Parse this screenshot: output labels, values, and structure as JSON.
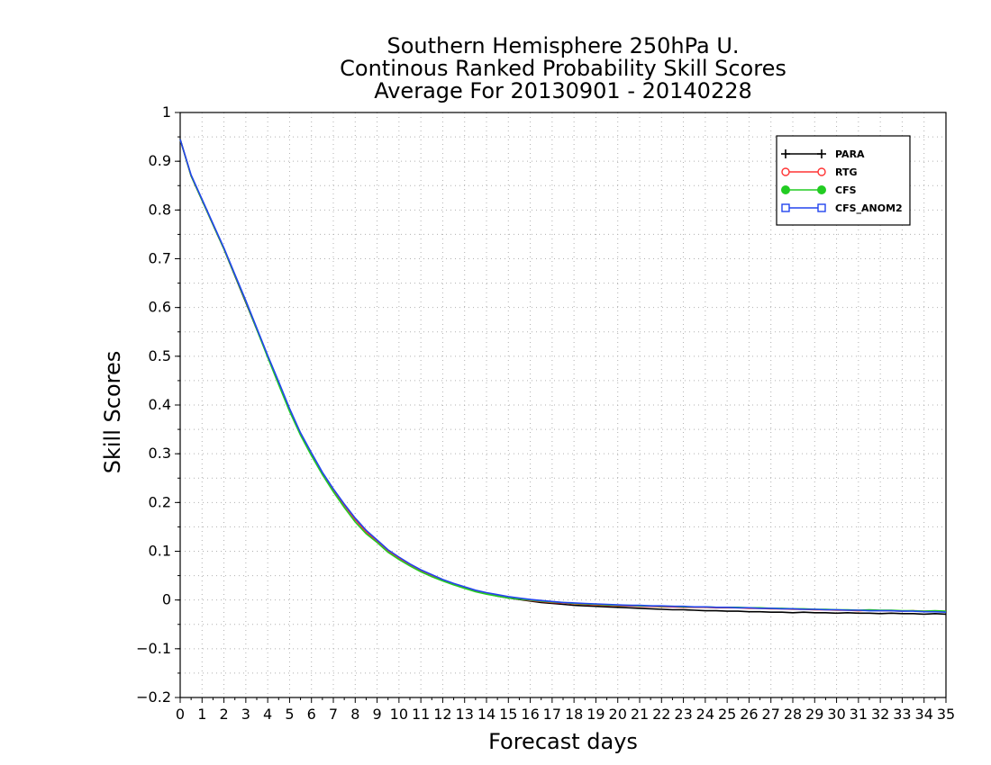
{
  "chart_data": {
    "type": "line",
    "title": [
      "Southern Hemisphere 250hPa U.",
      "Continous Ranked Probability Skill Scores",
      "Average For 20130901 - 20140228"
    ],
    "xlabel": "Forecast days",
    "ylabel": "Skill Scores",
    "xlim": [
      0,
      35
    ],
    "ylim": [
      -0.2,
      1
    ],
    "x_ticks": [
      0,
      1,
      2,
      3,
      4,
      5,
      6,
      7,
      8,
      9,
      10,
      11,
      12,
      13,
      14,
      15,
      16,
      17,
      18,
      19,
      20,
      21,
      22,
      23,
      24,
      25,
      26,
      27,
      28,
      29,
      30,
      31,
      32,
      33,
      34,
      35
    ],
    "y_ticks": [
      -0.2,
      -0.1,
      0,
      0.1,
      0.2,
      0.3,
      0.4,
      0.5,
      0.6,
      0.7,
      0.8,
      0.9,
      1
    ],
    "grid": true,
    "legend_position": "top-right",
    "x": [
      0,
      0.5,
      1,
      1.5,
      2,
      2.5,
      3,
      3.5,
      4,
      4.5,
      5,
      5.5,
      6,
      6.5,
      7,
      7.5,
      8,
      8.5,
      9,
      9.5,
      10,
      10.5,
      11,
      11.5,
      12,
      12.5,
      13,
      13.5,
      14,
      14.5,
      15,
      15.5,
      16,
      16.5,
      17,
      17.5,
      18,
      18.5,
      19,
      19.5,
      20,
      20.5,
      21,
      21.5,
      22,
      22.5,
      23,
      23.5,
      24,
      24.5,
      25,
      25.5,
      26,
      26.5,
      27,
      27.5,
      28,
      28.5,
      29,
      29.5,
      30,
      30.5,
      31,
      31.5,
      32,
      32.5,
      33,
      33.5,
      34,
      34.5,
      35
    ],
    "series": [
      {
        "name": "PARA",
        "color": "#000000",
        "marker": "plus",
        "values": [
          0.945,
          0.87,
          0.82,
          0.77,
          0.72,
          0.665,
          0.61,
          0.555,
          0.5,
          0.445,
          0.39,
          0.34,
          0.3,
          0.26,
          0.225,
          0.195,
          0.165,
          0.14,
          0.12,
          0.1,
          0.085,
          0.072,
          0.06,
          0.05,
          0.04,
          0.032,
          0.025,
          0.018,
          0.013,
          0.008,
          0.004,
          0.001,
          -0.002,
          -0.005,
          -0.007,
          -0.009,
          -0.011,
          -0.012,
          -0.013,
          -0.014,
          -0.015,
          -0.016,
          -0.017,
          -0.018,
          -0.019,
          -0.02,
          -0.02,
          -0.021,
          -0.022,
          -0.022,
          -0.023,
          -0.023,
          -0.024,
          -0.024,
          -0.025,
          -0.025,
          -0.026,
          -0.025,
          -0.026,
          -0.026,
          -0.027,
          -0.026,
          -0.027,
          -0.027,
          -0.028,
          -0.027,
          -0.028,
          -0.028,
          -0.029,
          -0.028,
          -0.029
        ]
      },
      {
        "name": "RTG",
        "color": "#ff3333",
        "marker": "open-circle",
        "values": [
          0.945,
          0.87,
          0.82,
          0.77,
          0.72,
          0.666,
          0.612,
          0.556,
          0.5,
          0.445,
          0.39,
          0.341,
          0.3,
          0.26,
          0.226,
          0.195,
          0.165,
          0.14,
          0.121,
          0.101,
          0.086,
          0.072,
          0.06,
          0.05,
          0.04,
          0.032,
          0.025,
          0.018,
          0.013,
          0.009,
          0.005,
          0.002,
          -0.001,
          -0.003,
          -0.005,
          -0.006,
          -0.008,
          -0.009,
          -0.01,
          -0.011,
          -0.012,
          -0.012,
          -0.013,
          -0.013,
          -0.014,
          -0.014,
          -0.015,
          -0.015,
          -0.015,
          -0.016,
          -0.016,
          -0.016,
          -0.017,
          -0.017,
          -0.018,
          -0.018,
          -0.019,
          -0.019,
          -0.02,
          -0.02,
          -0.021,
          -0.021,
          -0.022,
          -0.021,
          -0.022,
          -0.022,
          -0.023,
          -0.022,
          -0.023,
          -0.023,
          -0.024
        ]
      },
      {
        "name": "CFS",
        "color": "#22cc22",
        "marker": "filled-circle",
        "values": [
          0.945,
          0.87,
          0.82,
          0.77,
          0.72,
          0.666,
          0.612,
          0.555,
          0.498,
          0.442,
          0.387,
          0.338,
          0.296,
          0.257,
          0.222,
          0.19,
          0.16,
          0.136,
          0.118,
          0.098,
          0.083,
          0.07,
          0.058,
          0.048,
          0.039,
          0.031,
          0.024,
          0.017,
          0.012,
          0.008,
          0.004,
          0.002,
          0,
          -0.002,
          -0.004,
          -0.005,
          -0.007,
          -0.008,
          -0.009,
          -0.01,
          -0.011,
          -0.011,
          -0.012,
          -0.012,
          -0.013,
          -0.013,
          -0.014,
          -0.014,
          -0.014,
          -0.015,
          -0.015,
          -0.015,
          -0.016,
          -0.016,
          -0.017,
          -0.017,
          -0.018,
          -0.018,
          -0.019,
          -0.019,
          -0.02,
          -0.02,
          -0.021,
          -0.02,
          -0.021,
          -0.021,
          -0.022,
          -0.022,
          -0.023,
          -0.022,
          -0.023
        ]
      },
      {
        "name": "CFS_ANOM2",
        "color": "#2244ee",
        "marker": "open-square",
        "values": [
          0.945,
          0.872,
          0.822,
          0.772,
          0.722,
          0.668,
          0.614,
          0.558,
          0.502,
          0.448,
          0.393,
          0.343,
          0.302,
          0.262,
          0.228,
          0.197,
          0.168,
          0.143,
          0.123,
          0.103,
          0.088,
          0.074,
          0.062,
          0.052,
          0.042,
          0.034,
          0.027,
          0.02,
          0.015,
          0.011,
          0.007,
          0.004,
          0.001,
          -0.001,
          -0.003,
          -0.005,
          -0.006,
          -0.007,
          -0.008,
          -0.009,
          -0.01,
          -0.011,
          -0.011,
          -0.012,
          -0.012,
          -0.013,
          -0.013,
          -0.014,
          -0.014,
          -0.015,
          -0.015,
          -0.016,
          -0.016,
          -0.017,
          -0.017,
          -0.018,
          -0.018,
          -0.019,
          -0.019,
          -0.02,
          -0.02,
          -0.021,
          -0.021,
          -0.022,
          -0.022,
          -0.022,
          -0.023,
          -0.023,
          -0.024,
          -0.024,
          -0.025
        ]
      }
    ]
  }
}
